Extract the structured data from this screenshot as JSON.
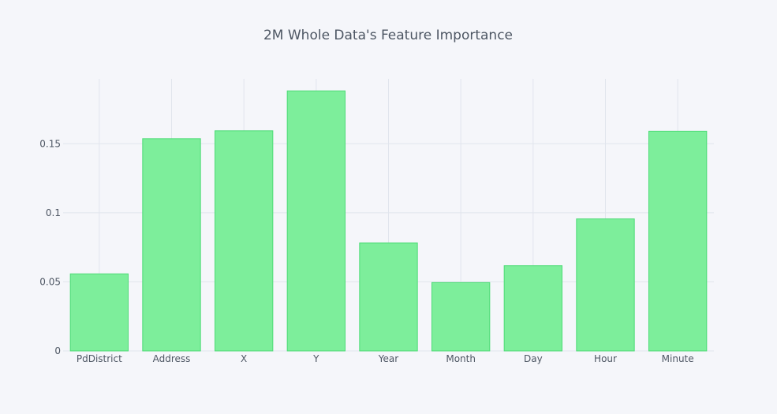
{
  "chart_data": {
    "type": "bar",
    "title": "2M Whole Data's Feature Importance",
    "xlabel": "",
    "ylabel": "",
    "categories": [
      "PdDistrict",
      "Address",
      "X",
      "Y",
      "Year",
      "Month",
      "Day",
      "Hour",
      "Minute"
    ],
    "values": [
      0.0558,
      0.1537,
      0.1594,
      0.1883,
      0.0782,
      0.0495,
      0.0618,
      0.0956,
      0.1591
    ],
    "ylim": [
      0,
      0.197
    ],
    "yticks": [
      0,
      0.05,
      0.1,
      0.15
    ],
    "ytick_labels": [
      "0",
      "0.05",
      "0.1",
      "0.15"
    ],
    "grid": true,
    "legend": "none",
    "colors": {
      "background": "#f5f6fa",
      "bar_fill": "#7dee9b",
      "bar_stroke": "#4ddb76",
      "grid": "#e1e5ed",
      "text": "#4d5663"
    }
  }
}
